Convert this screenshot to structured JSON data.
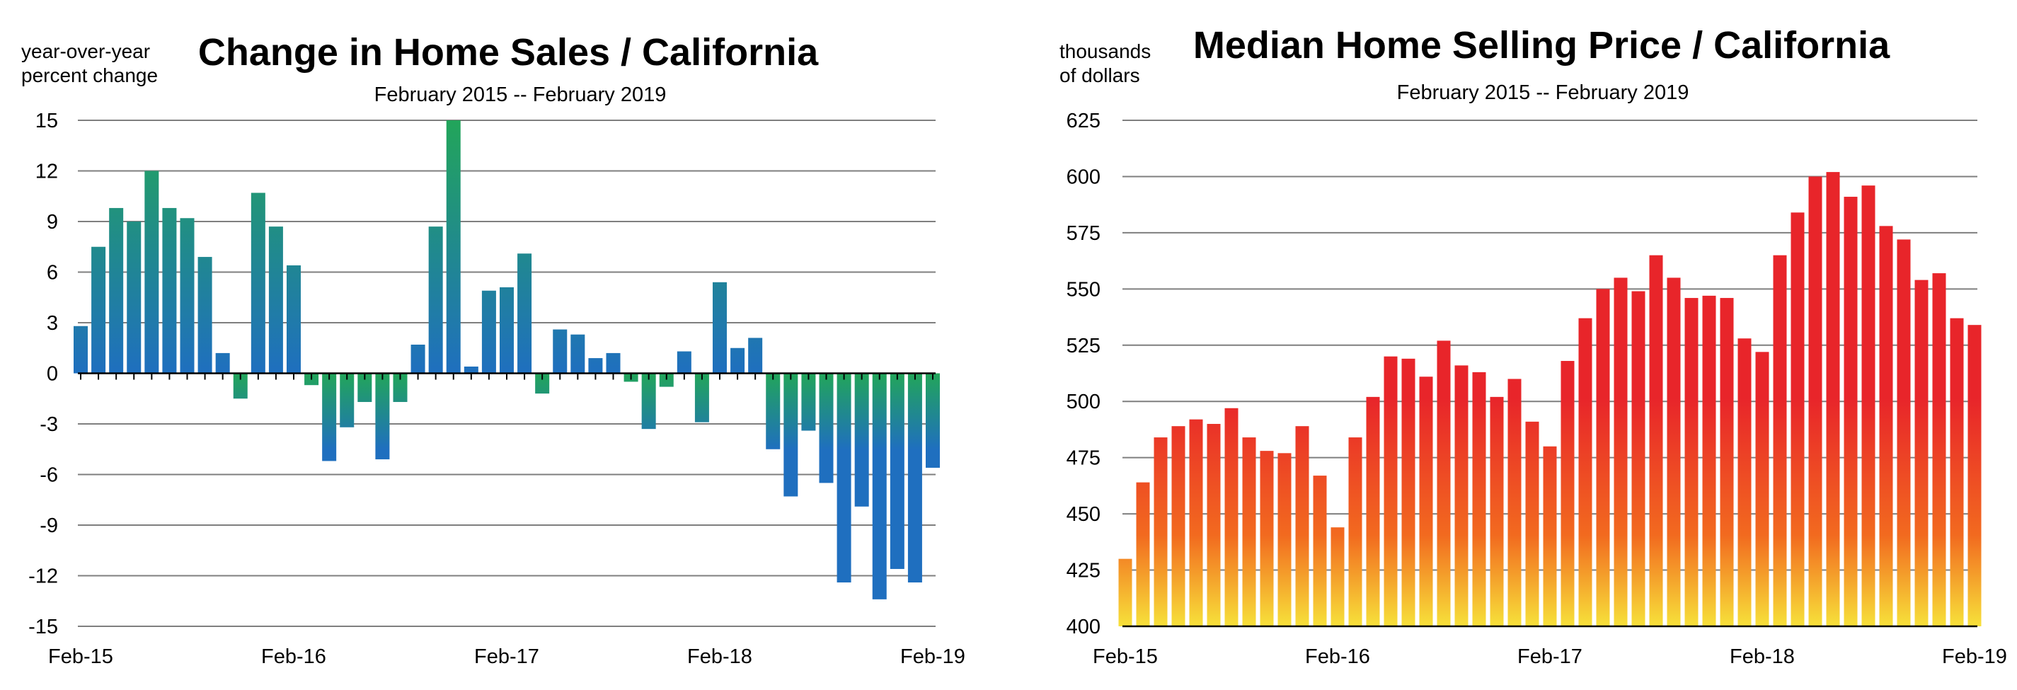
{
  "chart_data": [
    {
      "type": "bar",
      "title": "Change in Home Sales / California",
      "subtitle": "February 2015 -- February 2019",
      "ylabel": [
        "year-over-year",
        "percent change"
      ],
      "ylim": [
        -15,
        15
      ],
      "yticks": [
        "15",
        "12",
        "9",
        "6",
        "3",
        "0",
        "-3",
        "-6",
        "-9",
        "-12",
        "-15"
      ],
      "xtick_labels": [
        "Feb-15",
        "Feb-16",
        "Feb-17",
        "Feb-18",
        "Feb-19"
      ],
      "x_range": [
        "2015-02",
        "2019-02"
      ],
      "grid": true,
      "colors": {
        "bar_top": "#22a55a",
        "bar_bottom": "#1f6fbf"
      },
      "x": [
        "2015-02",
        "2015-03",
        "2015-04",
        "2015-05",
        "2015-06",
        "2015-07",
        "2015-08",
        "2015-09",
        "2015-10",
        "2015-11",
        "2015-12",
        "2016-01",
        "2016-02",
        "2016-03",
        "2016-04",
        "2016-05",
        "2016-06",
        "2016-07",
        "2016-08",
        "2016-09",
        "2016-10",
        "2016-11",
        "2016-12",
        "2017-01",
        "2017-02",
        "2017-03",
        "2017-04",
        "2017-05",
        "2017-06",
        "2017-07",
        "2017-08",
        "2017-09",
        "2017-10",
        "2017-11",
        "2017-12",
        "2018-01",
        "2018-02",
        "2018-03",
        "2018-04",
        "2018-05",
        "2018-06",
        "2018-07",
        "2018-08",
        "2018-09",
        "2018-10",
        "2018-11",
        "2018-12",
        "2019-01",
        "2019-02"
      ],
      "values": [
        2.8,
        7.5,
        9.8,
        9.0,
        12.0,
        9.8,
        9.2,
        6.9,
        1.2,
        -1.5,
        10.7,
        8.7,
        6.4,
        -0.7,
        -5.2,
        -3.2,
        -1.7,
        -5.1,
        -1.7,
        1.7,
        8.7,
        15.0,
        0.4,
        4.9,
        5.1,
        7.1,
        -1.2,
        2.6,
        2.3,
        0.9,
        1.2,
        -0.5,
        -3.3,
        -0.8,
        1.3,
        -2.9,
        5.4,
        1.5,
        2.1,
        -4.5,
        -7.3,
        -3.4,
        -6.5,
        -12.4,
        -7.9,
        -13.4,
        -11.6,
        -12.4,
        -5.6
      ]
    },
    {
      "type": "bar",
      "title": "Median Home Selling Price / California",
      "subtitle": "February 2015 -- February 2019",
      "ylabel": [
        "thousands",
        "of dollars"
      ],
      "ylim": [
        400,
        625
      ],
      "yticks": [
        "625",
        "600",
        "575",
        "550",
        "525",
        "500",
        "475",
        "450",
        "425",
        "400"
      ],
      "xtick_labels": [
        "Feb-15",
        "Feb-16",
        "Feb-17",
        "Feb-18",
        "Feb-19"
      ],
      "x_range": [
        "2015-02",
        "2019-02"
      ],
      "grid": true,
      "colors": {
        "bar_top": "#e8252a",
        "bar_mid": "#f26a1f",
        "bar_bottom": "#f7e13a"
      },
      "x": [
        "2015-02",
        "2015-03",
        "2015-04",
        "2015-05",
        "2015-06",
        "2015-07",
        "2015-08",
        "2015-09",
        "2015-10",
        "2015-11",
        "2015-12",
        "2016-01",
        "2016-02",
        "2016-03",
        "2016-04",
        "2016-05",
        "2016-06",
        "2016-07",
        "2016-08",
        "2016-09",
        "2016-10",
        "2016-11",
        "2016-12",
        "2017-01",
        "2017-02",
        "2017-03",
        "2017-04",
        "2017-05",
        "2017-06",
        "2017-07",
        "2017-08",
        "2017-09",
        "2017-10",
        "2017-11",
        "2017-12",
        "2018-01",
        "2018-02",
        "2018-03",
        "2018-04",
        "2018-05",
        "2018-06",
        "2018-07",
        "2018-08",
        "2018-09",
        "2018-10",
        "2018-11",
        "2018-12",
        "2019-01",
        "2019-02"
      ],
      "values": [
        430,
        464,
        484,
        489,
        492,
        490,
        497,
        484,
        478,
        477,
        489,
        467,
        444,
        484,
        502,
        520,
        519,
        511,
        527,
        516,
        513,
        502,
        510,
        491,
        480,
        518,
        537,
        550,
        555,
        549,
        565,
        555,
        546,
        547,
        546,
        528,
        522,
        565,
        584,
        600,
        602,
        591,
        596,
        578,
        572,
        554,
        557,
        537,
        534
      ]
    }
  ]
}
